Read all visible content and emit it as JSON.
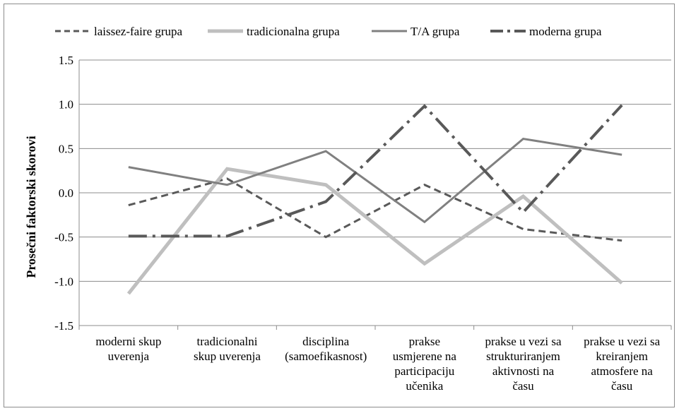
{
  "chart_data": {
    "type": "line",
    "ylabel": "Prosečni faktorski skorovi",
    "ylim": [
      -1.5,
      1.5
    ],
    "yticks": [
      "1.5",
      "1.0",
      "0.5",
      "0.0",
      "-0.5",
      "-1.0",
      "-1.5"
    ],
    "ytick_values": [
      1.5,
      1.0,
      0.5,
      0.0,
      -0.5,
      -1.0,
      -1.5
    ],
    "grid": true,
    "legend_position": "top",
    "categories": [
      [
        "moderni skup",
        "uverenja"
      ],
      [
        "tradicionalni",
        "skup uverenja"
      ],
      [
        "disciplina",
        "(samoefikasnost)"
      ],
      [
        "prakse",
        "usmjerene na",
        "participaciju",
        "učenika"
      ],
      [
        "prakse u vezi sa",
        "strukturiranjem",
        "aktivnosti na",
        "času"
      ],
      [
        "prakse u vezi sa",
        "kreiranjem",
        "atmosfere na",
        "času"
      ]
    ],
    "series": [
      {
        "name": "laissez-faire grupa",
        "style": "dashed",
        "color": "#595959",
        "values": [
          -0.14,
          0.16,
          -0.5,
          0.09,
          -0.41,
          -0.54
        ]
      },
      {
        "name": "tradicionalna grupa",
        "style": "solid-thick",
        "color": "#bfbfbf",
        "values": [
          -1.14,
          0.27,
          0.09,
          -0.8,
          -0.04,
          -1.02
        ]
      },
      {
        "name": "T/A grupa",
        "style": "solid",
        "color": "#808080",
        "values": [
          0.29,
          0.09,
          0.47,
          -0.33,
          0.61,
          0.43
        ]
      },
      {
        "name": "moderna grupa",
        "style": "dashdot",
        "color": "#595959",
        "values": [
          -0.49,
          -0.49,
          -0.1,
          0.98,
          -0.22,
          0.99
        ]
      }
    ]
  }
}
